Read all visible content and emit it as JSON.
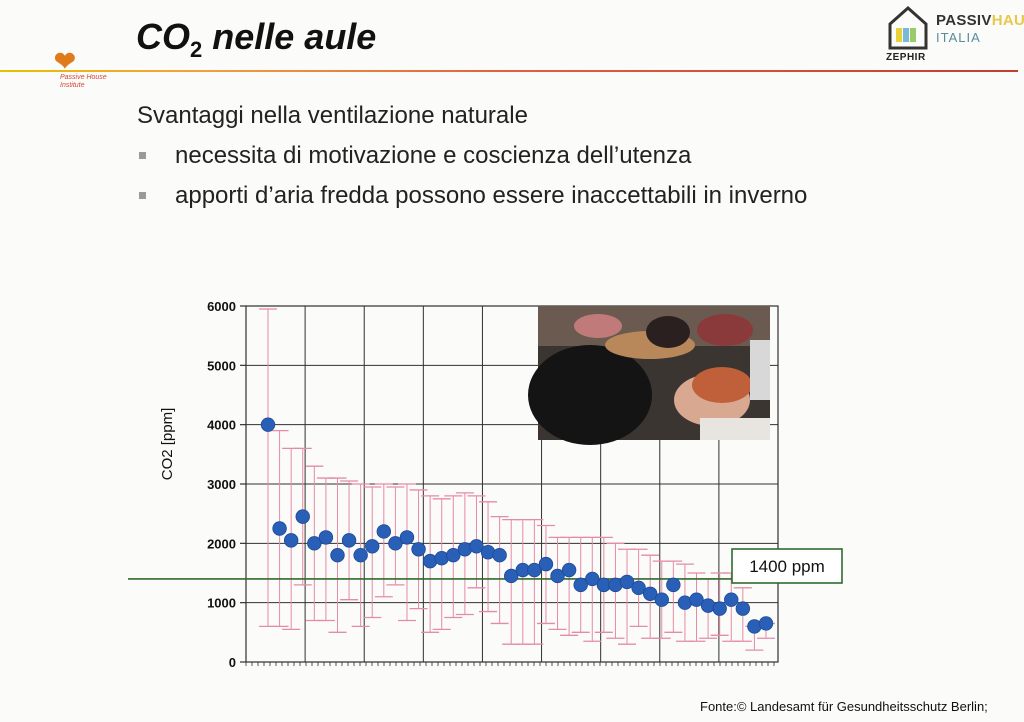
{
  "slide": {
    "title_main": "CO",
    "title_sub": "2",
    "title_rest": " nelle aule",
    "lead": "Svantaggi nella ventilazione naturale",
    "bullets": [
      "necessita di motivazione e coscienza dell’utenza",
      "apporti d’aria fredda possono essere inaccettabili in inverno"
    ],
    "source": "Fonte:© Landesamt für Gesundheitsschutz Berlin;"
  },
  "logos": {
    "left_text": "Passive House Institute",
    "right_line1": "PASSIV",
    "right_line1_tail": "HAUS",
    "right_line2": "ITALIA",
    "right_label": "ZEPHIR"
  },
  "colors": {
    "accent_red": "#d04a3a",
    "marker_blue": "#2a5fb8",
    "errorbar_pink": "#e48ca4",
    "threshold_green": "#2f6b2f",
    "grid": "#303030"
  },
  "chart_data": {
    "type": "scatter",
    "ylabel": "CO2 [ppm]",
    "ylim": [
      0,
      6000
    ],
    "yticks": [
      0,
      1000,
      2000,
      3000,
      4000,
      5000,
      6000
    ],
    "x_tick_labels": false,
    "grid": true,
    "threshold": {
      "value": 1400,
      "label": "1400 ppm"
    },
    "series": [
      {
        "values": [
          4000,
          2250,
          2050,
          2450,
          2000,
          2100,
          1800,
          2050,
          1800,
          1950,
          2200,
          2000,
          2100,
          1900,
          1700,
          1750,
          1800,
          1900,
          1950,
          1850,
          1800,
          1450,
          1550,
          1550,
          1650,
          1450,
          1550,
          1300,
          1400,
          1300,
          1300,
          1350,
          1250,
          1150,
          1050,
          1300,
          1000,
          1050,
          950,
          900,
          1050,
          900,
          600,
          650
        ],
        "err_low": [
          3400,
          1650,
          1500,
          1150,
          1300,
          1400,
          1300,
          1000,
          1200,
          1200,
          1100,
          700,
          1400,
          1000,
          1200,
          1200,
          1050,
          1100,
          700,
          1000,
          1150,
          1150,
          1250,
          1250,
          1000,
          900,
          1100,
          800,
          1050,
          800,
          900,
          1050,
          650,
          750,
          650,
          800,
          650,
          700,
          550,
          450,
          700,
          550,
          400,
          250
        ],
        "err_high": [
          1950,
          1650,
          1550,
          1150,
          1300,
          1000,
          1300,
          1000,
          1200,
          1000,
          800,
          950,
          900,
          1000,
          1100,
          1000,
          1000,
          950,
          850,
          850,
          650,
          950,
          850,
          850,
          650,
          650,
          550,
          800,
          700,
          800,
          700,
          550,
          650,
          650,
          650,
          400,
          650,
          450,
          450,
          600,
          450,
          350,
          0,
          0
        ]
      }
    ]
  }
}
